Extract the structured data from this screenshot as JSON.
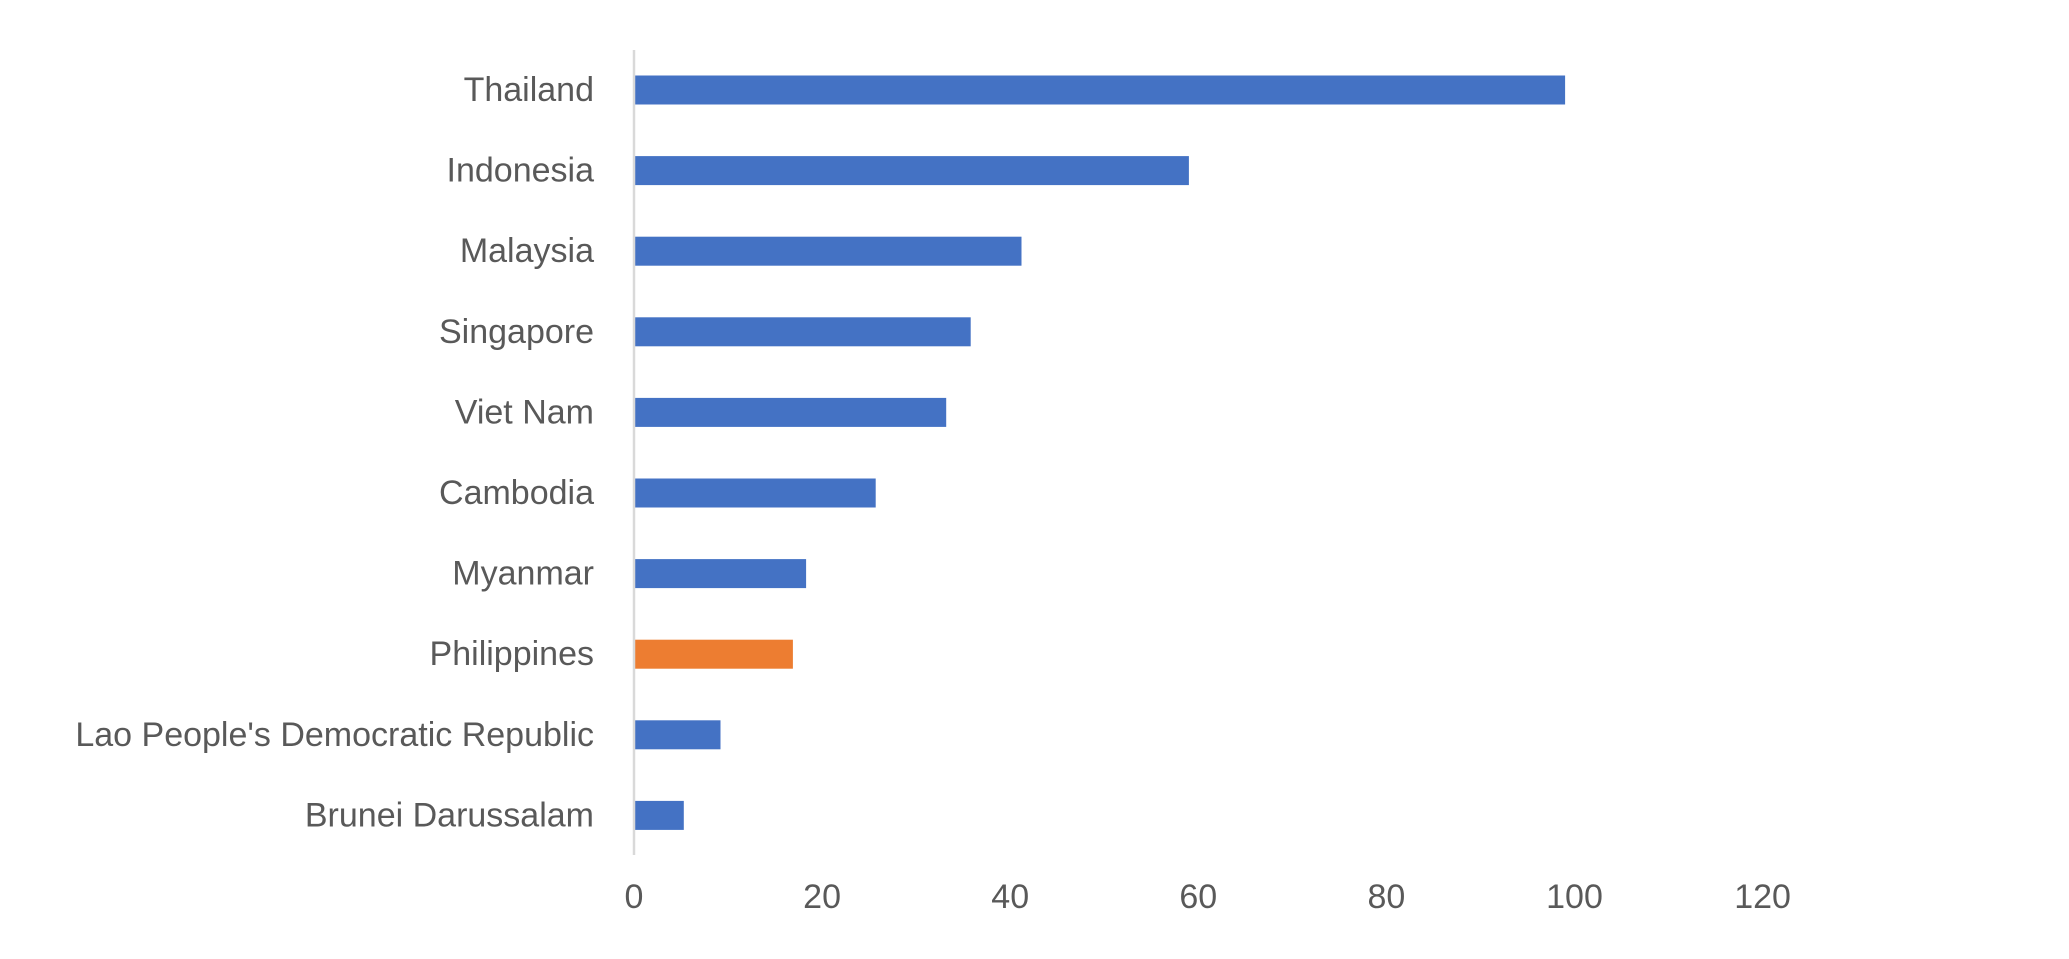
{
  "chart_data": {
    "type": "bar",
    "orientation": "horizontal",
    "title": "",
    "xlabel": "",
    "ylabel": "",
    "categories": [
      "Thailand",
      "Indonesia",
      "Malaysia",
      "Singapore",
      "Viet Nam",
      "Cambodia",
      "Myanmar",
      "Philippines",
      "Lao People's Democratic Republic",
      "Brunei Darussalam"
    ],
    "values": [
      99,
      59,
      41.2,
      35.8,
      33.2,
      25.7,
      18.3,
      16.9,
      9.2,
      5.3
    ],
    "highlight": "Philippines",
    "xlim": [
      0,
      120
    ],
    "xticks": [
      0,
      20,
      40,
      60,
      80,
      100,
      120
    ],
    "grid": false,
    "legend": "none",
    "colors": {
      "default": "#4472c4",
      "highlight": "#ed7d31",
      "axis": "#d9d9d9",
      "text": "#595959"
    }
  }
}
